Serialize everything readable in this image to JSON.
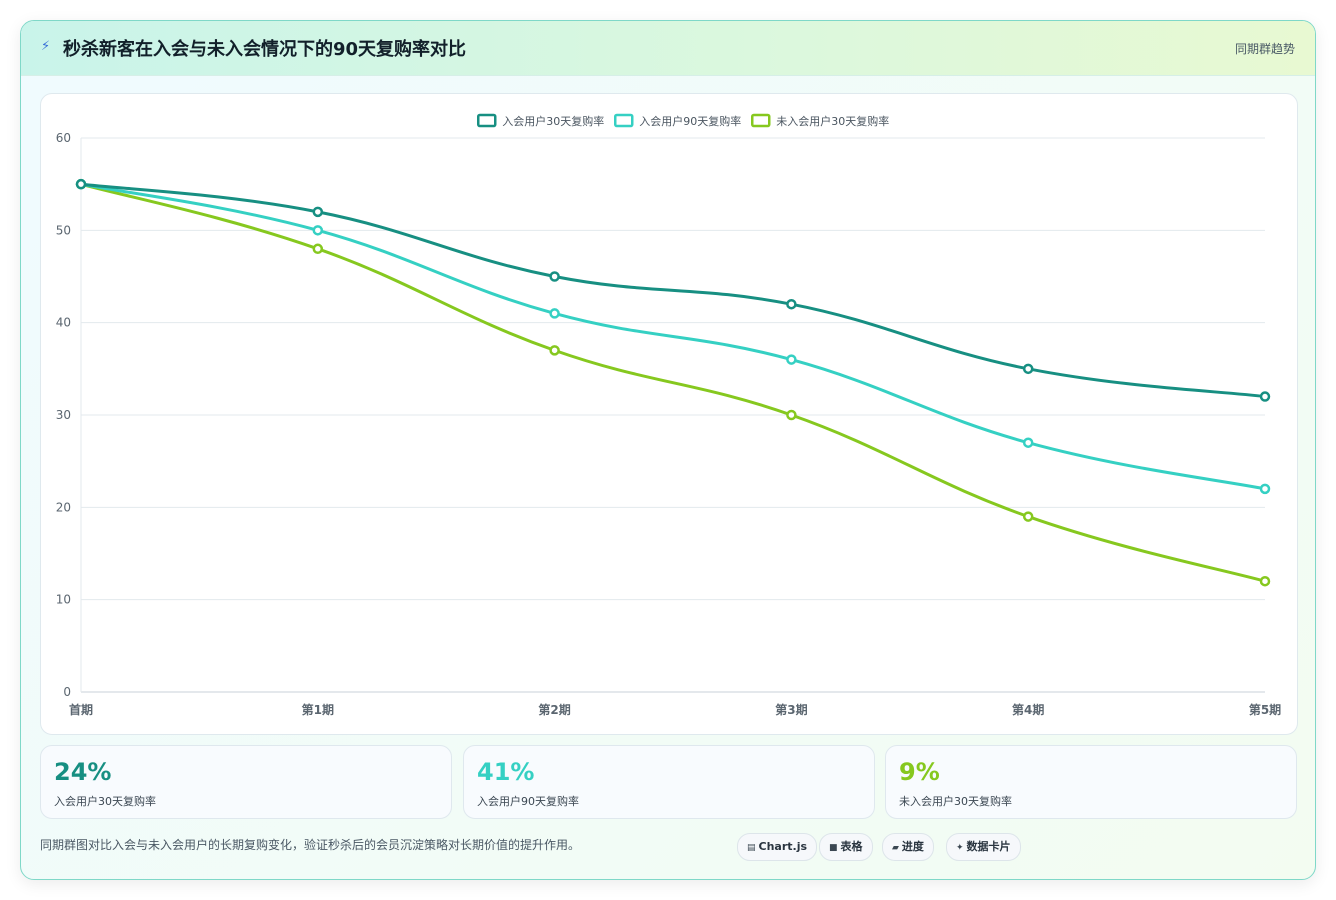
{
  "header": {
    "icon": "lightning-icon",
    "title": "秒杀新客在入会与未入会情况下的90天复购率对比",
    "right_label": "同期群趋势"
  },
  "chart_data": {
    "type": "line",
    "categories": [
      "首期",
      "第1期",
      "第2期",
      "第3期",
      "第4期",
      "第5期"
    ],
    "series": [
      {
        "name": "入会用户30天复购率",
        "color": "#178f82",
        "values": [
          55,
          52,
          45,
          42,
          35,
          32
        ]
      },
      {
        "name": "入会用户90天复购率",
        "color": "#35d0c3",
        "values": [
          55,
          50,
          41,
          36,
          27,
          22
        ]
      },
      {
        "name": "未入会用户30天复购率",
        "color": "#86c81f",
        "values": [
          55,
          48,
          37,
          30,
          19,
          12
        ]
      }
    ],
    "ylim": [
      0,
      60
    ],
    "yticks": [
      0,
      10,
      20,
      30,
      40,
      50,
      60
    ],
    "grid": true,
    "legend": "top-center"
  },
  "stats": [
    {
      "value": "24%",
      "label": "入会用户30天复购率",
      "color": "#178f82"
    },
    {
      "value": "41%",
      "label": "入会用户90天复购率",
      "color": "#35d0c3"
    },
    {
      "value": "9%",
      "label": "未入会用户30天复购率",
      "color": "#86c81f"
    }
  ],
  "footnote": "同期群图对比入会与未入会用户的长期复购变化，验证秒杀后的会员沉淀策略对长期价值的提升作用。",
  "chips": [
    {
      "icon": "chart-icon",
      "glyph": "▤",
      "label": "Chart.js"
    },
    {
      "icon": "table-icon",
      "glyph": "■",
      "label": "表格"
    },
    {
      "icon": "progress-icon",
      "glyph": "▰",
      "label": "进度"
    },
    {
      "icon": "sparkle-icon",
      "glyph": "✦",
      "label": "数据卡片"
    }
  ]
}
